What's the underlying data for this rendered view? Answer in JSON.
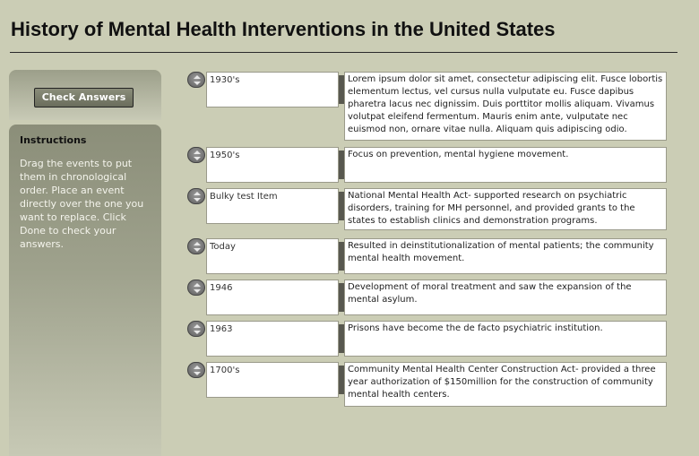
{
  "page": {
    "title": "History of Mental Health Interventions in the United States"
  },
  "sidebar": {
    "check_button_label": "Check Answers",
    "instructions_heading": "Instructions",
    "instructions_text": "Drag the events to put them in chronological order. Place an event directly over the one you want to replace. Click Done to check your answers."
  },
  "icons": {
    "handle": "drag-handle-icon"
  },
  "rows": [
    {
      "event": "1930's",
      "description": "Lorem ipsum dolor sit amet, consectetur adipiscing elit. Fusce lobortis elementum lectus, vel cursus nulla vulputate eu. Fusce dapibus pharetra lacus nec dignissim. Duis porttitor mollis aliquam. Vivamus volutpat eleifend fermentum. Mauris enim ante, vulputate nec euismod non, ornare vitae nulla. Aliquam quis adipiscing odio."
    },
    {
      "event": "1950's",
      "description": "Focus on prevention, mental hygiene movement."
    },
    {
      "event": "Bulky test Item",
      "description": "National Mental Health Act- supported research on psychiatric disorders, training for MH personnel, and provided grants to the states to establish clinics and demonstration programs."
    },
    {
      "event": "Today",
      "description": "Resulted in deinstitutionalization of mental patients; the community mental health movement."
    },
    {
      "event": "1946",
      "description": "Development of moral treatment and saw the expansion of the mental asylum."
    },
    {
      "event": "1963",
      "description": "Prisons have become the de facto psychiatric institution."
    },
    {
      "event": "1700's",
      "description": "Community Mental Health Center Construction Act- provided a three year authorization of $150million for the construction of community mental health centers."
    }
  ]
}
